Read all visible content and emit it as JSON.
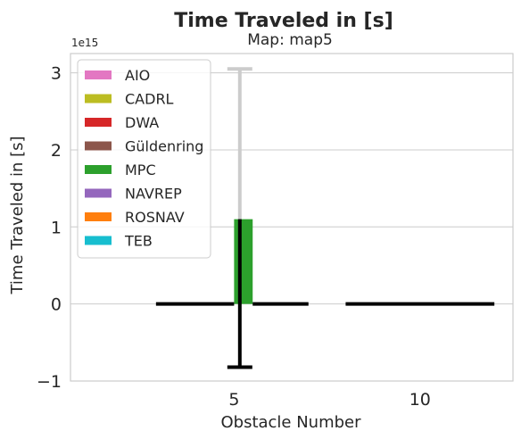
{
  "chart_data": {
    "type": "bar",
    "title": "Time Traveled in [s]",
    "subtitle": "Map: map5",
    "xlabel": "Obstacle Number",
    "ylabel": "Time Traveled in [s]",
    "y_scale_label": "1e15",
    "x_categories": [
      "5",
      "10"
    ],
    "x_range": [
      0.6,
      12.5
    ],
    "ylim": [
      -1.0,
      3.25
    ],
    "y_ticks": [
      -1,
      0,
      1,
      2,
      3
    ],
    "y_tick_labels": [
      "−1",
      "0",
      "1",
      "2",
      "3"
    ],
    "grid": "horizontal",
    "legend_position": "top-left",
    "series": [
      {
        "name": "AIO",
        "color": "#e377c2"
      },
      {
        "name": "CADRL",
        "color": "#bcbd22"
      },
      {
        "name": "DWA",
        "color": "#d62728"
      },
      {
        "name": "Güldenring",
        "color": "#8c564b"
      },
      {
        "name": "MPC",
        "color": "#2ca02c"
      },
      {
        "name": "NAVREP",
        "color": "#9467bd"
      },
      {
        "name": "ROSNAV",
        "color": "#ff7f0e"
      },
      {
        "name": "TEB",
        "color": "#17becf"
      }
    ],
    "bars": [
      {
        "series": "MPC",
        "x_start": 5.0,
        "x_end": 5.5,
        "value": 1.1,
        "error_low": -0.82,
        "error_high": 3.05
      }
    ],
    "zero_lines": [
      {
        "x_start": 2.9,
        "x_end": 5.0
      },
      {
        "x_start": 5.5,
        "x_end": 7.0
      },
      {
        "x_start": 8.0,
        "x_end": 12.0
      }
    ]
  }
}
